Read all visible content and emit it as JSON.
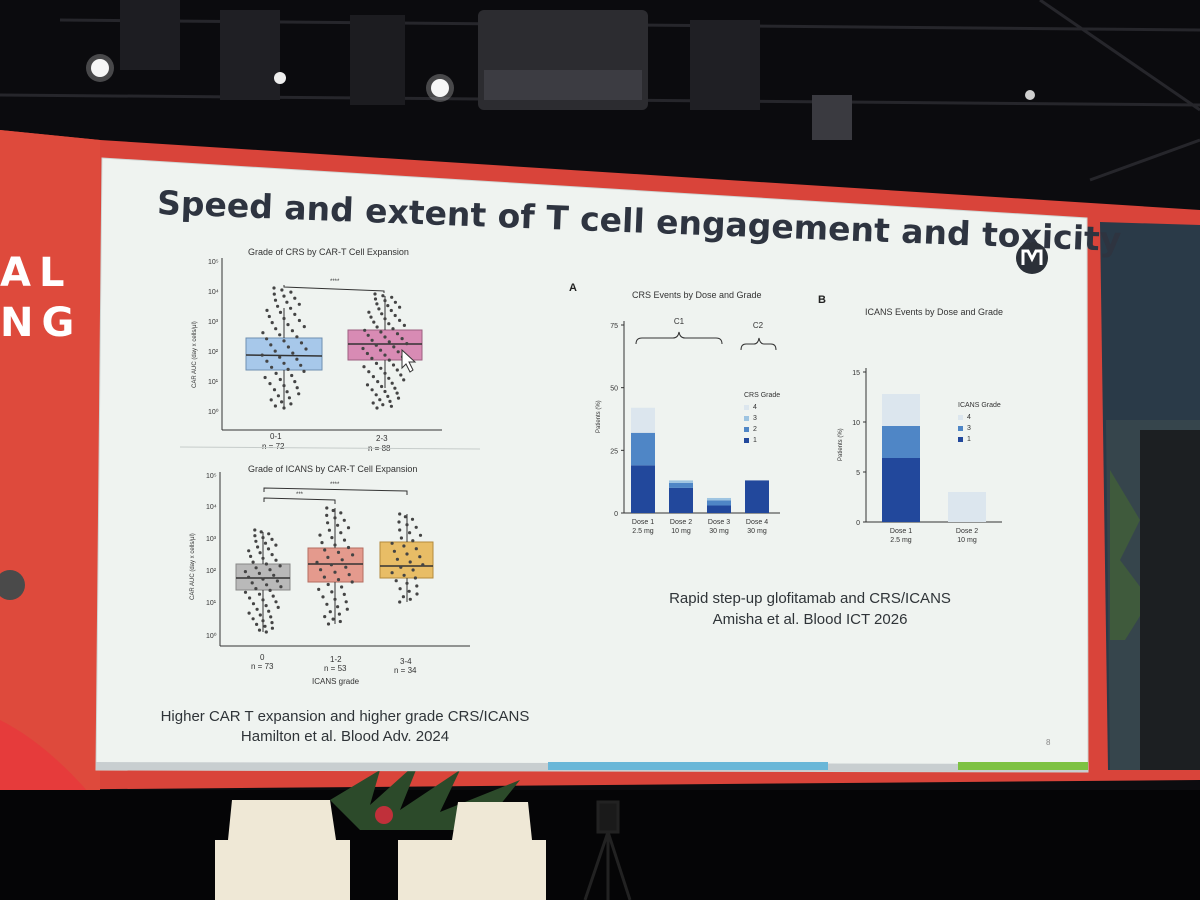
{
  "banner": {
    "left_text_top": "AL",
    "left_text_bottom": "NG"
  },
  "slide": {
    "title": "Speed and extent of T cell engagement and toxicity",
    "page_number": "8",
    "logo_icon": "institution-logo-icon"
  },
  "left_figure": {
    "top_panel": {
      "title": "Grade of CRS by CAR-T Cell Expansion",
      "y_label": "CAR AUC (day x cells/μl)",
      "y_ticks": [
        "10⁵",
        "10⁴",
        "10³",
        "10²",
        "10¹",
        "10⁰"
      ],
      "significance": "****",
      "groups": [
        {
          "label": "0-1",
          "n": "n = 72",
          "color": "#a7c8ea"
        },
        {
          "label": "2-3",
          "n": "n = 88",
          "color": "#d88bb4"
        }
      ]
    },
    "bottom_panel": {
      "title": "Grade of ICANS by CAR-T Cell Expansion",
      "y_label": "CAR AUC (day x cells/μl)",
      "y_ticks": [
        "10⁵",
        "10⁴",
        "10³",
        "10²",
        "10¹",
        "10⁰"
      ],
      "significance_1": "***",
      "significance_2": "****",
      "x_title": "ICANS grade",
      "groups": [
        {
          "label": "0",
          "n": "n = 73",
          "color": "#b9b9b9"
        },
        {
          "label": "1-2",
          "n": "n = 53",
          "color": "#e49a8d"
        },
        {
          "label": "3-4",
          "n": "n = 34",
          "color": "#e8bd66"
        }
      ]
    },
    "caption_line1": "Higher CAR T expansion and higher grade CRS/ICANS",
    "caption_line2": "Hamilton et al. Blood Adv. 2024"
  },
  "right_figure": {
    "panel_a": {
      "letter": "A",
      "title": "CRS Events by Dose and Grade",
      "y_label": "Patients (%)",
      "brackets": [
        "C1",
        "C2"
      ],
      "legend_title": "CRS Grade",
      "legend": [
        {
          "label": "4",
          "color": "#dce6ee"
        },
        {
          "label": "3",
          "color": "#9ec4e1"
        },
        {
          "label": "2",
          "color": "#4f86c6"
        },
        {
          "label": "1",
          "color": "#22489c"
        }
      ]
    },
    "panel_b": {
      "letter": "B",
      "title": "ICANS Events by Dose and Grade",
      "y_label": "Patients (%)",
      "legend_title": "ICANS Grade",
      "legend": [
        {
          "label": "4",
          "color": "#dce6ee"
        },
        {
          "label": "3",
          "color": "#4f86c6"
        },
        {
          "label": "1",
          "color": "#22489c"
        }
      ]
    },
    "caption_line1": "Rapid step-up glofitamab and CRS/ICANS",
    "caption_line2": "Amisha et al. Blood ICT 2026"
  },
  "chart_data": [
    {
      "type": "bar",
      "title": "CRS Events by Dose and Grade",
      "ylabel": "Patients (%)",
      "ylim": [
        0,
        75
      ],
      "yticks": [
        "0",
        "25",
        "50",
        "75"
      ],
      "categories": [
        "Dose 1 2.5 mg",
        "Dose 2 10 mg",
        "Dose 3 30 mg",
        "Dose 4 30 mg"
      ],
      "category_lines": [
        [
          "Dose 1",
          "2.5 mg"
        ],
        [
          "Dose 2",
          "10 mg"
        ],
        [
          "Dose 3",
          "30 mg"
        ],
        [
          "Dose 4",
          "30 mg"
        ]
      ],
      "stacked": true,
      "series": [
        {
          "name": "1",
          "values": [
            19,
            10,
            3,
            13
          ],
          "color": "#22489c"
        },
        {
          "name": "2",
          "values": [
            13,
            2,
            2,
            0
          ],
          "color": "#4f86c6"
        },
        {
          "name": "3",
          "values": [
            0,
            1,
            1,
            0
          ],
          "color": "#9ec4e1"
        },
        {
          "name": "4",
          "values": [
            10,
            0,
            0,
            0
          ],
          "color": "#dce6ee"
        }
      ]
    },
    {
      "type": "bar",
      "title": "ICANS Events by Dose and Grade",
      "ylabel": "Patients (%)",
      "ylim": [
        0,
        15
      ],
      "yticks": [
        "0",
        "5",
        "10",
        "15"
      ],
      "categories": [
        "Dose 1 2.5 mg",
        "Dose 2 10 mg"
      ],
      "category_lines": [
        [
          "Dose 1",
          "2.5 mg"
        ],
        [
          "Dose 2",
          "10 mg"
        ]
      ],
      "stacked": true,
      "series": [
        {
          "name": "1",
          "values": [
            6.4,
            0
          ],
          "color": "#22489c"
        },
        {
          "name": "3",
          "values": [
            3.2,
            0
          ],
          "color": "#4f86c6"
        },
        {
          "name": "4",
          "values": [
            3.2,
            3.0
          ],
          "color": "#dce6ee"
        }
      ]
    }
  ]
}
